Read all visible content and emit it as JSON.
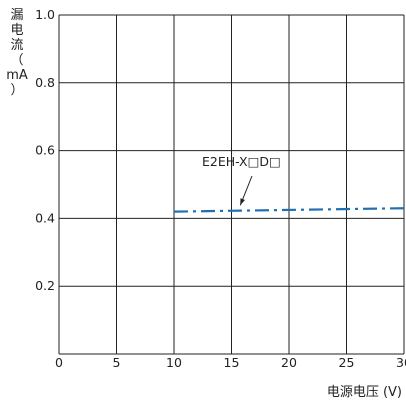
{
  "chart_data": {
    "type": "line",
    "ylabel_chars": [
      "漏",
      "电",
      "流",
      "（",
      "mA",
      "）"
    ],
    "xlabel": "电源电压 (V)",
    "xlim": [
      0,
      30
    ],
    "ylim": [
      0,
      1.0
    ],
    "x_ticks": [
      "0",
      "5",
      "10",
      "15",
      "20",
      "25",
      "30"
    ],
    "y_ticks": [
      "0.2",
      "0.4",
      "0.6",
      "0.8",
      "1.0"
    ],
    "grid": true,
    "series": [
      {
        "name": "E2EH-X□D□",
        "x": [
          10,
          30
        ],
        "y": [
          0.42,
          0.43
        ],
        "color": "#1f6fb3",
        "style": "dash-dot"
      }
    ],
    "annotation": {
      "text": "E2EH-X□D□",
      "point_x": 15.5,
      "point_y": 0.424
    }
  }
}
